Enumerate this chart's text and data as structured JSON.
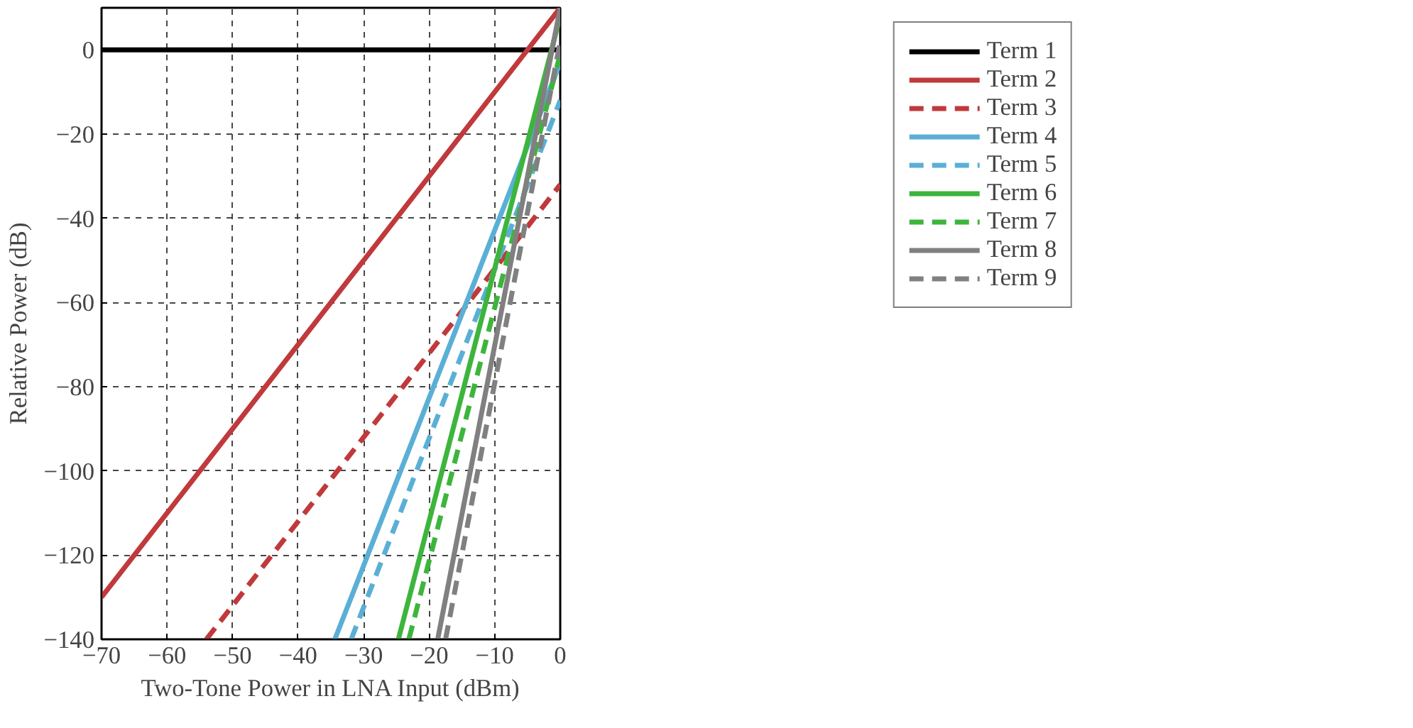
{
  "chart_data": {
    "type": "line",
    "xlabel": "Two-Tone Power in LNA Input (dBm)",
    "ylabel": "Relative Power (dB)",
    "xlim": [
      -70,
      0
    ],
    "ylim": [
      -140,
      10
    ],
    "xticks": [
      {
        "value": -70,
        "label": "−70"
      },
      {
        "value": -60,
        "label": "−60"
      },
      {
        "value": -50,
        "label": "−50"
      },
      {
        "value": -40,
        "label": "−40"
      },
      {
        "value": -30,
        "label": "−30"
      },
      {
        "value": -20,
        "label": "−20"
      },
      {
        "value": -10,
        "label": "−10"
      },
      0
    ],
    "yticks": [
      {
        "value": -140,
        "label": "−140"
      },
      {
        "value": -120,
        "label": "−120"
      },
      {
        "value": -100,
        "label": "−100"
      },
      {
        "value": -80,
        "label": "−80"
      },
      {
        "value": -60,
        "label": "−60"
      },
      {
        "value": -40,
        "label": "−40"
      },
      {
        "value": -20,
        "label": "−20"
      },
      0
    ],
    "grid": true,
    "legend": "top right",
    "marker": "none",
    "series": [
      {
        "name": "Term 1",
        "color": "#000000",
        "x": [
          -70,
          0
        ],
        "values": [
          0,
          0
        ],
        "line_style": "solid"
      },
      {
        "name": "Term 2",
        "color": "#c0393b",
        "x": [
          -70,
          0
        ],
        "values": [
          -130,
          10
        ],
        "line_style": "solid"
      },
      {
        "name": "Term 3",
        "color": "#c0393b",
        "x": [
          -54,
          0
        ],
        "values": [
          -140,
          -32
        ],
        "line_style": "dashed"
      },
      {
        "name": "Term 4",
        "color": "#5aafd6",
        "x": [
          -34.4,
          0
        ],
        "values": [
          -140,
          -3
        ],
        "line_style": "solid"
      },
      {
        "name": "Term 5",
        "color": "#5aafd6",
        "x": [
          -31.9,
          0
        ],
        "values": [
          -140,
          -12
        ],
        "line_style": "dashed"
      },
      {
        "name": "Term 6",
        "color": "#3db53d",
        "x": [
          -24.7,
          0
        ],
        "values": [
          -140,
          8
        ],
        "line_style": "solid"
      },
      {
        "name": "Term 7",
        "color": "#3db53d",
        "x": [
          -23.1,
          0
        ],
        "values": [
          -140,
          -1
        ],
        "line_style": "dashed"
      },
      {
        "name": "Term 8",
        "color": "#808080",
        "x": [
          -18.7,
          0
        ],
        "values": [
          -140,
          10
        ],
        "line_style": "solid"
      },
      {
        "name": "Term 9",
        "color": "#808080",
        "x": [
          -17.5,
          0
        ],
        "values": [
          -140,
          2
        ],
        "line_style": "dashed"
      }
    ]
  }
}
